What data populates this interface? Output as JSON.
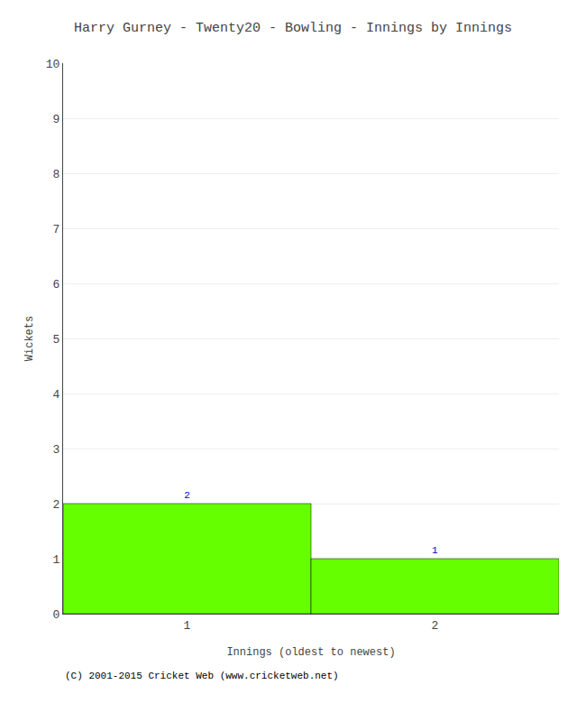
{
  "chart_data": {
    "type": "bar",
    "title": "Harry Gurney - Twenty20 - Bowling - Innings by Innings",
    "xlabel": "Innings (oldest to newest)",
    "ylabel": "Wickets",
    "x": [
      1,
      2
    ],
    "values": [
      2,
      1
    ],
    "color": "#66ff00",
    "data_labels": true,
    "xlim": [
      0.5,
      2.5
    ],
    "xticks": [
      1,
      2
    ],
    "ylim": [
      0,
      10
    ],
    "yticks": [
      0,
      1,
      2,
      3,
      4,
      5,
      6,
      7,
      8,
      9,
      10
    ],
    "grid": true,
    "annotations": [
      "(C) 2001-2015 Cricket Web (www.cricketweb.net)"
    ]
  }
}
